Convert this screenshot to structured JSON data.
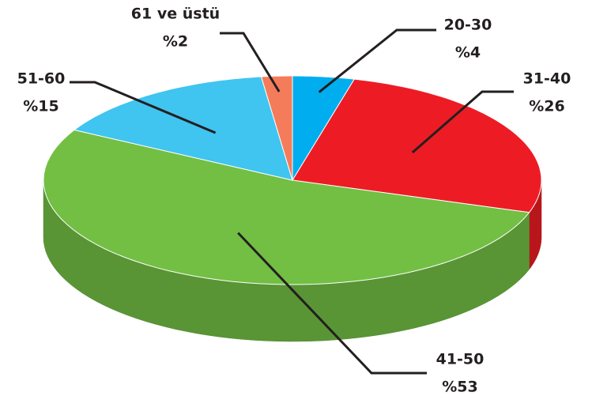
{
  "chart_data": {
    "type": "pie",
    "categories": [
      "20-30",
      "31-40",
      "41-50",
      "51-60",
      "61 ve üstü"
    ],
    "values": [
      4,
      26,
      53,
      15,
      2
    ],
    "value_labels": [
      "%4",
      "%26",
      "%53",
      "%15",
      "%2"
    ],
    "colors": [
      "#00aeef",
      "#ed1c24",
      "#72bf44",
      "#40c4f0",
      "#f47c5a"
    ]
  }
}
